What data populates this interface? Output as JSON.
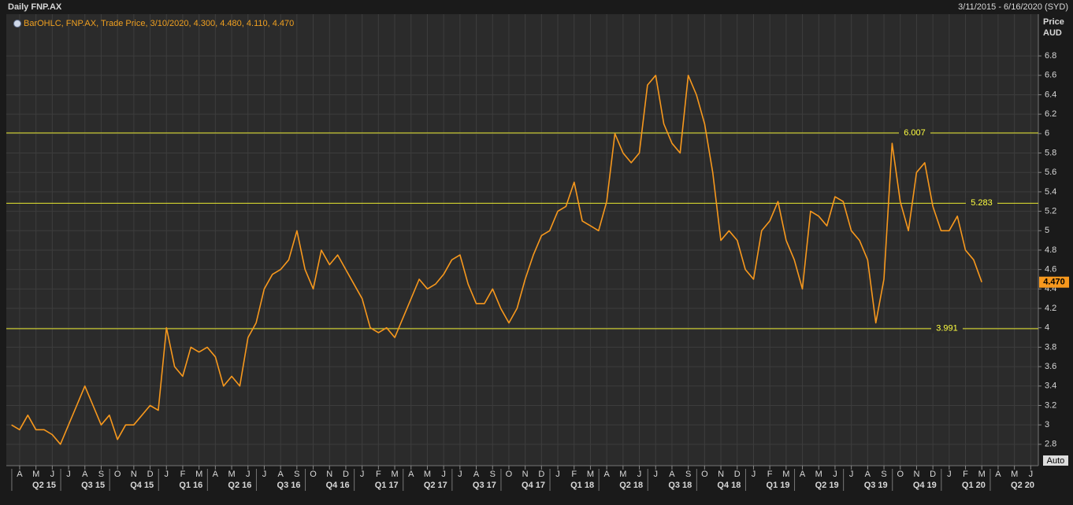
{
  "chart_data": {
    "type": "line",
    "title": "Daily FNP.AX",
    "date_range": "3/11/2015 - 6/16/2020 (SYD)",
    "legend_text": "BarOHLC, FNP.AX, Trade Price, 3/10/2020, 4.300, 4.480, 4.110, 4.470",
    "y_axis_label": "Price",
    "y_axis_unit": "AUD",
    "scale_mode": "Auto",
    "categories": [
      null,
      "A",
      null,
      "M",
      null,
      "J",
      null,
      "J",
      null,
      "A",
      null,
      "S",
      null,
      "O",
      null,
      "N",
      null,
      "D",
      null,
      "J",
      null,
      "F",
      null,
      "M",
      null,
      "A",
      null,
      "M",
      null,
      "J",
      null,
      "J",
      null,
      "A",
      null,
      "S",
      null,
      "O",
      null,
      "N",
      null,
      "D",
      null,
      "J",
      null,
      "F",
      null,
      "M",
      null,
      "A",
      null,
      "M",
      null,
      "J",
      null,
      "J",
      null,
      "A",
      null,
      "S",
      null,
      "O",
      null,
      "N",
      null,
      "D",
      null,
      "J",
      null,
      "F",
      null,
      "M",
      null,
      "A",
      null,
      "M",
      null,
      "J",
      null,
      "J",
      null,
      "A",
      null,
      "S",
      null,
      "O",
      null,
      "N",
      null,
      "D",
      null,
      "J",
      null,
      "F",
      null,
      "M",
      null,
      "A",
      null,
      "M",
      null,
      "J",
      null,
      "J",
      null,
      "A",
      null,
      "S",
      null,
      "O",
      null,
      "N",
      null,
      "D",
      null,
      "J",
      null,
      "F",
      null,
      "M",
      null,
      "A",
      null,
      "M",
      null,
      "J"
    ],
    "quarters": [
      "Q2 15",
      "Q3 15",
      "Q4 15",
      "Q1 16",
      "Q2 16",
      "Q3 16",
      "Q4 16",
      "Q1 17",
      "Q2 17",
      "Q3 17",
      "Q4 17",
      "Q1 18",
      "Q2 18",
      "Q3 18",
      "Q4 18",
      "Q1 19",
      "Q2 19",
      "Q3 19",
      "Q4 19",
      "Q1 20",
      "Q2 20"
    ],
    "series": [
      {
        "name": "FNP.AX",
        "color": "#f7981d",
        "values": [
          3.0,
          2.95,
          3.1,
          2.95,
          2.95,
          2.9,
          2.8,
          3.0,
          3.2,
          3.4,
          3.2,
          3.0,
          3.1,
          2.85,
          3.0,
          3.0,
          3.1,
          3.2,
          3.15,
          4.0,
          3.6,
          3.5,
          3.8,
          3.75,
          3.8,
          3.7,
          3.4,
          3.5,
          3.4,
          3.9,
          4.05,
          4.4,
          4.55,
          4.6,
          4.7,
          5.0,
          4.6,
          4.4,
          4.8,
          4.65,
          4.75,
          4.6,
          4.45,
          4.3,
          4.0,
          3.95,
          4.0,
          3.9,
          4.1,
          4.3,
          4.5,
          4.4,
          4.45,
          4.55,
          4.7,
          4.75,
          4.45,
          4.25,
          4.25,
          4.4,
          4.2,
          4.05,
          4.2,
          4.5,
          4.75,
          4.95,
          5.0,
          5.2,
          5.25,
          5.5,
          5.1,
          5.05,
          5.0,
          5.3,
          6.0,
          5.8,
          5.7,
          5.8,
          6.5,
          6.6,
          6.1,
          5.9,
          5.8,
          6.6,
          6.4,
          6.1,
          5.6,
          4.9,
          5.0,
          4.9,
          4.6,
          4.5,
          5.0,
          5.1,
          5.3,
          4.9,
          4.7,
          4.4,
          5.2,
          5.15,
          5.05,
          5.35,
          5.3,
          5.0,
          4.9,
          4.7,
          4.05,
          4.5,
          5.9,
          5.3,
          5.0,
          5.6,
          5.7,
          5.25,
          5.0,
          5.0,
          5.15,
          4.8,
          4.7,
          4.47,
          null,
          null,
          null,
          null,
          null,
          null
        ]
      }
    ],
    "reference_lines": [
      6.007,
      5.283,
      3.991
    ],
    "reference_color": "#e8e830",
    "last_price": {
      "value": 4.47,
      "label": "4.470"
    },
    "ylim": [
      2.58,
      7.23
    ],
    "yticks": [
      2.8,
      3,
      3.2,
      3.4,
      3.6,
      3.8,
      4,
      4.2,
      4.4,
      4.6,
      4.8,
      5,
      5.2,
      5.4,
      5.6,
      5.8,
      6,
      6.2,
      6.4,
      6.6,
      6.8
    ],
    "grid": true
  }
}
